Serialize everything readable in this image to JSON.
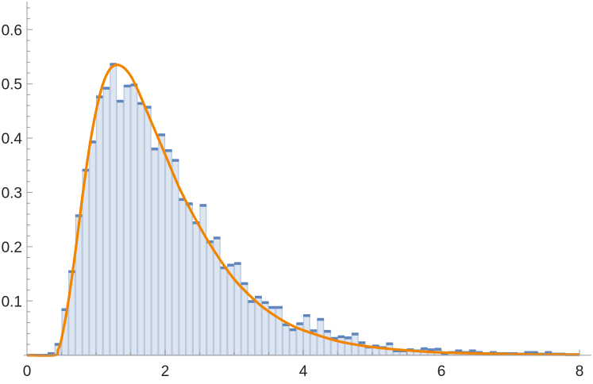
{
  "chart_data": {
    "type": "bar",
    "subtype": "histogram-with-fitted-curve",
    "title": "",
    "xlabel": "",
    "ylabel": "",
    "xlim": [
      0,
      8.17
    ],
    "ylim": [
      0,
      0.65
    ],
    "grid": false,
    "bin_width": 0.1,
    "x_ticks": [
      "0",
      "2",
      "4",
      "6",
      "8"
    ],
    "y_ticks": [
      "0.1",
      "0.2",
      "0.3",
      "0.4",
      "0.5",
      "0.6"
    ],
    "bins": {
      "starts": [
        0.0,
        0.1,
        0.2,
        0.3,
        0.4,
        0.5,
        0.6,
        0.7,
        0.8,
        0.9,
        1.0,
        1.1,
        1.2,
        1.3,
        1.4,
        1.5,
        1.6,
        1.7,
        1.8,
        1.9,
        2.0,
        2.1,
        2.2,
        2.3,
        2.4,
        2.5,
        2.6,
        2.7,
        2.8,
        2.9,
        3.0,
        3.1,
        3.2,
        3.3,
        3.4,
        3.5,
        3.6,
        3.7,
        3.8,
        3.9,
        4.0,
        4.1,
        4.2,
        4.3,
        4.4,
        4.5,
        4.6,
        4.7,
        4.8,
        4.9,
        5.0,
        5.1,
        5.2,
        5.3,
        5.4,
        5.5,
        5.6,
        5.7,
        5.8,
        5.9,
        6.0,
        6.1,
        6.2,
        6.3,
        6.4,
        6.5,
        6.6,
        6.7,
        6.8,
        6.9,
        7.0,
        7.1,
        7.2,
        7.3,
        7.4,
        7.5,
        7.6,
        7.7,
        7.8,
        7.9
      ],
      "values": [
        0,
        0,
        0,
        0.003,
        0.02,
        0.084,
        0.154,
        0.257,
        0.341,
        0.393,
        0.476,
        0.492,
        0.536,
        0.468,
        0.496,
        0.498,
        0.464,
        0.457,
        0.38,
        0.406,
        0.377,
        0.359,
        0.287,
        0.279,
        0.244,
        0.276,
        0.209,
        0.216,
        0.161,
        0.166,
        0.169,
        0.132,
        0.099,
        0.107,
        0.097,
        0.088,
        0.088,
        0.056,
        0.047,
        0.058,
        0.073,
        0.045,
        0.066,
        0.044,
        0.031,
        0.034,
        0.032,
        0.039,
        0.023,
        0.015,
        0.017,
        0.014,
        0.021,
        0.008,
        0.008,
        0.01,
        0.008,
        0.012,
        0.01,
        0.011,
        0.003,
        0.005,
        0.008,
        0.005,
        0.008,
        0.005,
        0.003,
        0.005,
        0.003,
        0.003,
        0.003,
        0.002,
        0.005,
        0.005,
        0.002,
        0.005,
        0.002,
        0.002,
        0.001,
        0.001
      ]
    },
    "curve": {
      "x": [
        0,
        0.4,
        0.45,
        0.5,
        0.6,
        0.7,
        0.8,
        0.9,
        1.0,
        1.1,
        1.2,
        1.3,
        1.4,
        1.5,
        1.6,
        1.7,
        1.8,
        2.0,
        2.2,
        2.4,
        2.6,
        2.8,
        3.0,
        3.2,
        3.4,
        3.6,
        3.8,
        4.0,
        4.5,
        5.0,
        5.5,
        6.0,
        7.0,
        8.0
      ],
      "y": [
        0,
        0,
        0.01,
        0.03,
        0.1,
        0.19,
        0.29,
        0.38,
        0.45,
        0.5,
        0.527,
        0.535,
        0.53,
        0.515,
        0.49,
        0.46,
        0.43,
        0.37,
        0.31,
        0.26,
        0.215,
        0.175,
        0.14,
        0.113,
        0.09,
        0.072,
        0.057,
        0.046,
        0.026,
        0.015,
        0.009,
        0.005,
        0.002,
        0.001
      ]
    },
    "colors": {
      "bar_fill": "#dde5f0",
      "bar_edge": "#b9c9e0",
      "bar_cap": "#5f86bd",
      "curve": "#f28500",
      "axis": "#999999"
    }
  }
}
